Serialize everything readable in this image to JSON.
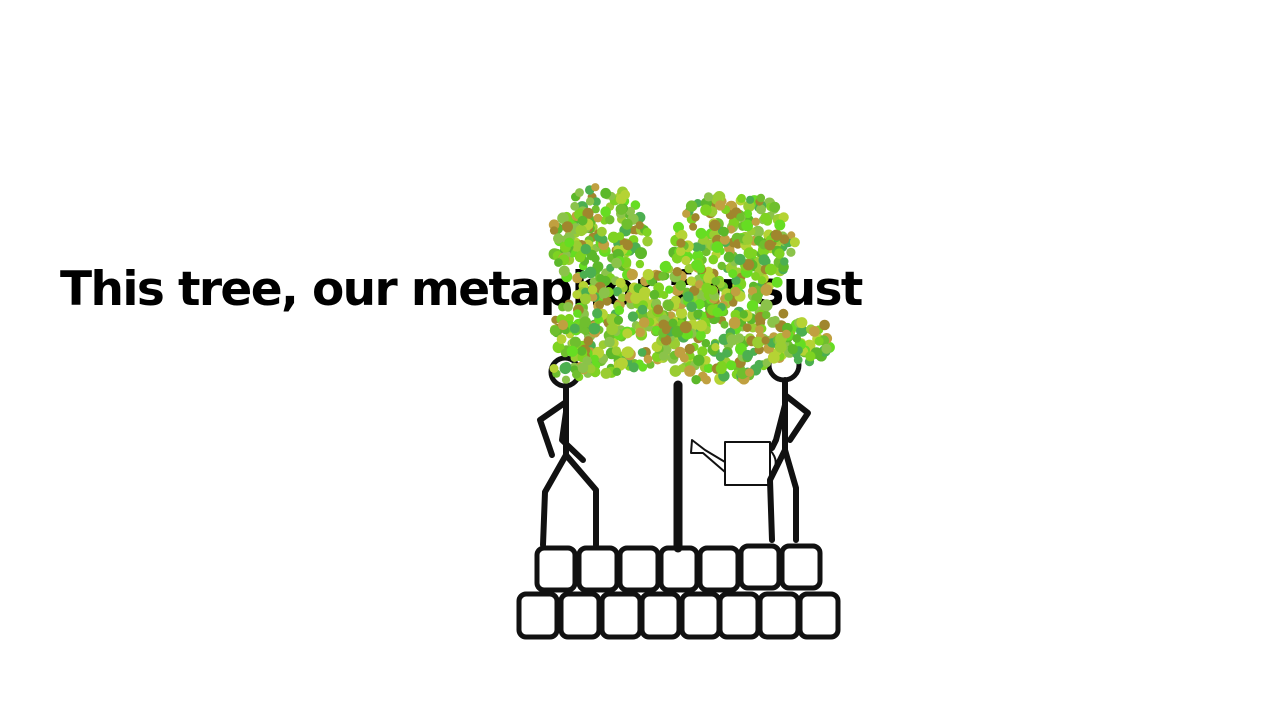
{
  "slide": {
    "caption": "This tree, our metaphor for sust"
  },
  "illustration": {
    "ink_color": "#111111",
    "leaf_colors": [
      "#7ed321",
      "#5cb82a",
      "#9acd32",
      "#a0862d",
      "#6fbf2e",
      "#b5d334",
      "#4caf50",
      "#8bc34a",
      "#c0a040",
      "#66dd22"
    ]
  }
}
